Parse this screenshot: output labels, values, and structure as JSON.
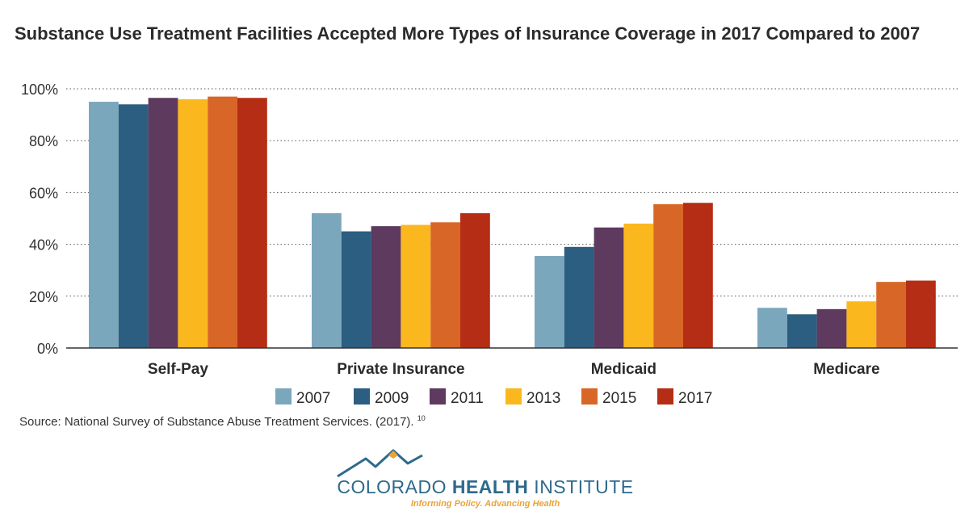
{
  "chart_data": {
    "type": "bar",
    "title": "Substance Use Treatment Facilities Accepted More Types of Insurance Coverage in 2017 Compared to 2007",
    "categories": [
      "Self-Pay",
      "Private Insurance",
      "Medicaid",
      "Medicare"
    ],
    "series": [
      {
        "name": "2007",
        "color": "#7ba7bd",
        "values": [
          95,
          52,
          35.5,
          15.5
        ]
      },
      {
        "name": "2009",
        "color": "#2b5e80",
        "values": [
          94,
          45,
          39,
          13
        ]
      },
      {
        "name": "2011",
        "color": "#5e3a5f",
        "values": [
          96.5,
          47,
          46.5,
          15
        ]
      },
      {
        "name": "2013",
        "color": "#fbb81e",
        "values": [
          96,
          47.5,
          48,
          18
        ]
      },
      {
        "name": "2015",
        "color": "#d86727",
        "values": [
          97,
          48.5,
          55.5,
          25.5
        ]
      },
      {
        "name": "2017",
        "color": "#b52d14",
        "values": [
          96.5,
          52,
          56,
          26
        ]
      }
    ],
    "ylim": [
      0,
      100
    ],
    "y_ticks": [
      0,
      20,
      40,
      60,
      80,
      100
    ],
    "y_tick_labels": [
      "0%",
      "20%",
      "40%",
      "60%",
      "80%",
      "100%"
    ],
    "y_unit": "%",
    "grid": "horizontal dotted",
    "legend_placement": "bottom"
  },
  "source": {
    "text": "Source: National Survey of Substance Abuse Treatment Services. (2017).",
    "footnote": "10"
  },
  "logo": {
    "name_regular_1": "COLORADO ",
    "name_bold": "HEALTH",
    "name_regular_2": " INSTITUTE",
    "tagline": "Informing Policy. Advancing Health"
  }
}
